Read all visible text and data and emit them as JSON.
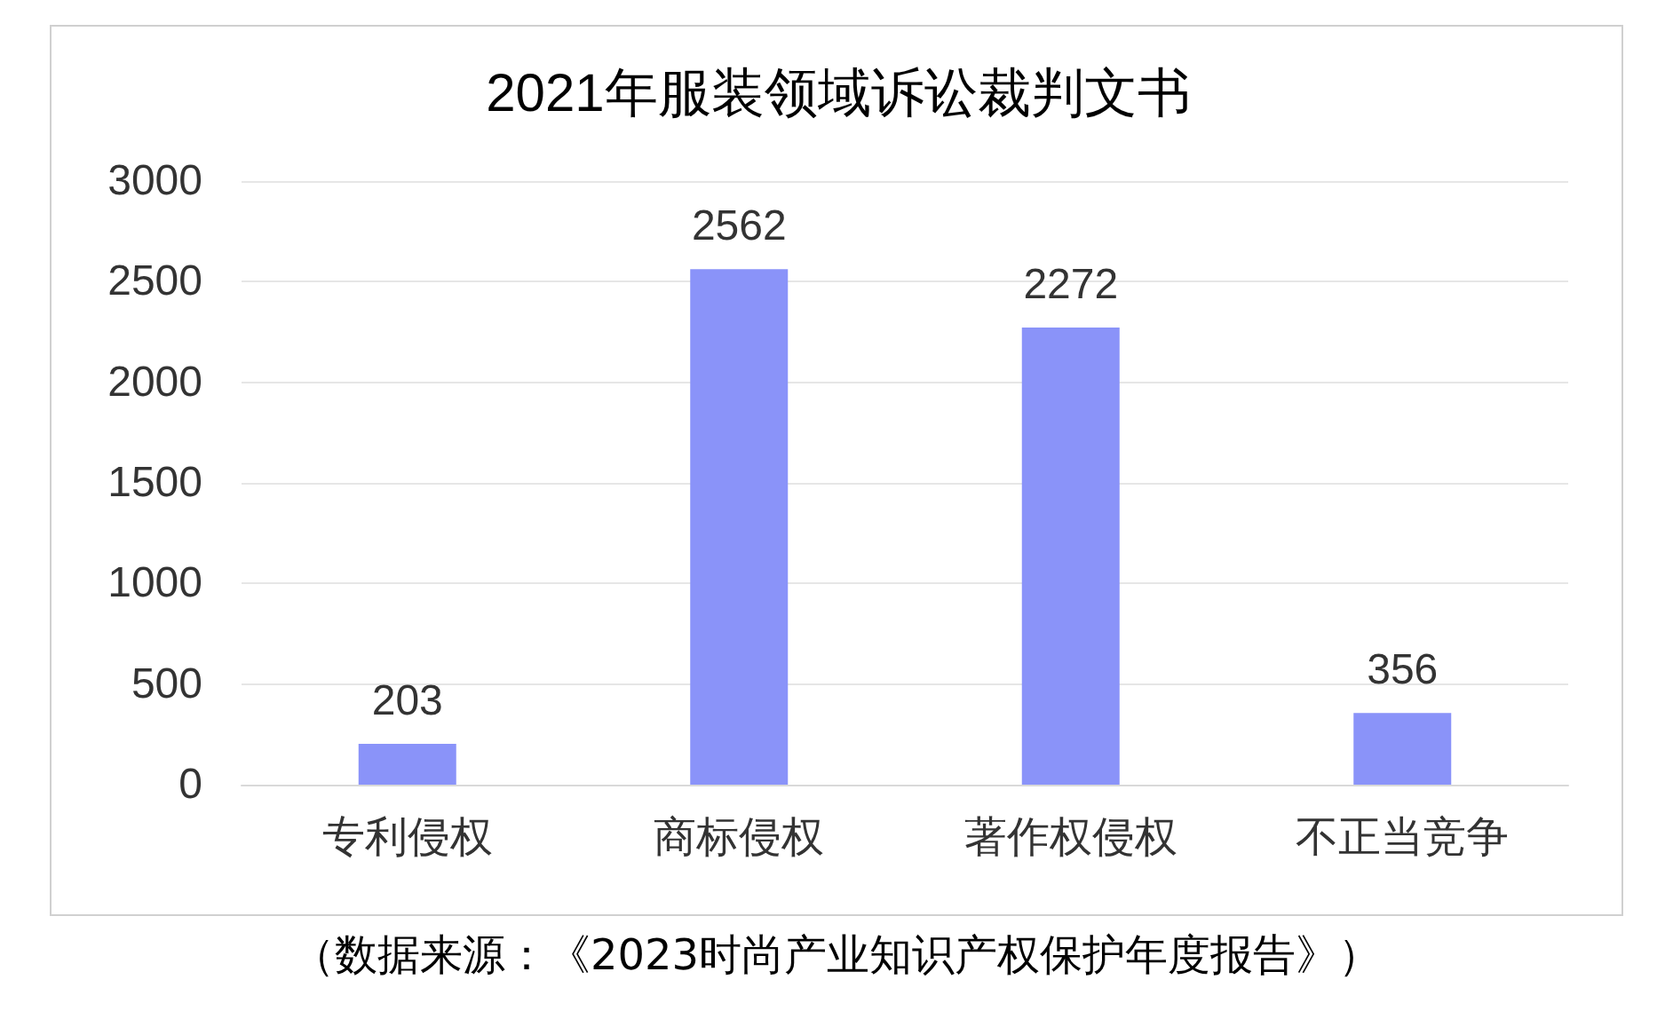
{
  "chart_data": {
    "type": "bar",
    "title": "2021年服装领域诉讼裁判文书",
    "categories": [
      "专利侵权",
      "商标侵权",
      "著作权侵权",
      "不正当竞争"
    ],
    "values": [
      203,
      2562,
      2272,
      356
    ],
    "color": "#8a93f9",
    "ylim": [
      0,
      3000
    ],
    "yticks": [
      0,
      500,
      1000,
      1500,
      2000,
      2500,
      3000
    ],
    "grid": "y",
    "data_labels": true,
    "annotations": [
      "（数据来源：《2023时尚产业知识产权保护年度报告》）"
    ]
  }
}
